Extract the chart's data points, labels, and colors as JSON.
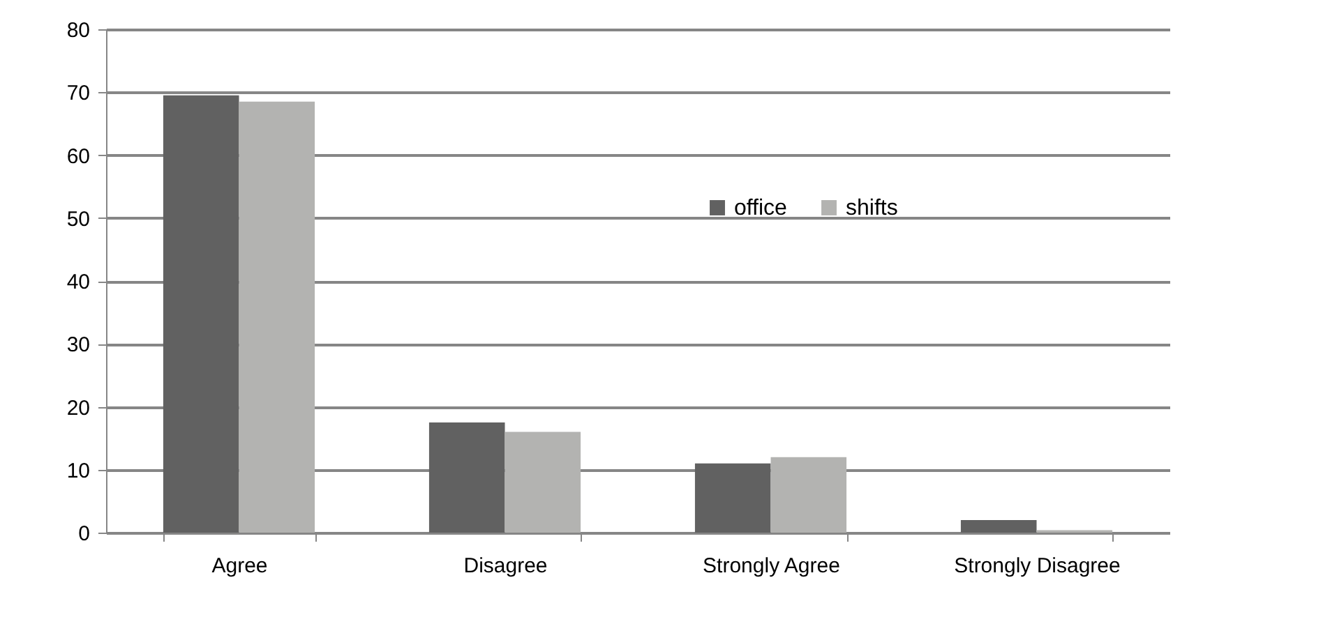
{
  "chart_data": {
    "type": "bar",
    "categories": [
      "Agree",
      "Disagree",
      "Strongly Agree",
      "Strongly Disagree"
    ],
    "series": [
      {
        "name": "office",
        "color": "#616161",
        "values": [
          69.5,
          17.5,
          11,
          2
        ]
      },
      {
        "name": "shifts",
        "color": "#b3b3b1",
        "values": [
          68.5,
          16,
          12,
          0.4
        ]
      }
    ],
    "ylim": [
      0,
      80
    ],
    "yticks": [
      0,
      10,
      20,
      30,
      40,
      50,
      60,
      70,
      80
    ],
    "grid": "y",
    "legend": "top"
  }
}
